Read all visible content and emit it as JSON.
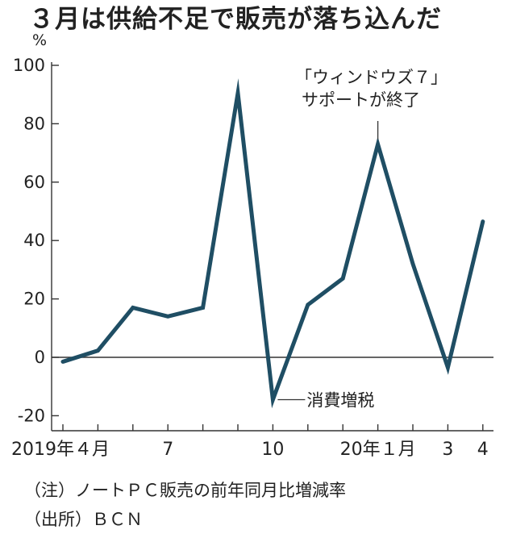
{
  "title": "３月は供給不足で販売が落ち込んだ",
  "notes": {
    "note": "（注）ノートＰＣ販売の前年同月比増減率",
    "source": "（出所）ＢＣＮ"
  },
  "chart_data": {
    "type": "line",
    "ylabel": "%",
    "ylim": [
      -20,
      100
    ],
    "y_ticks": [
      -20,
      0,
      20,
      40,
      60,
      80,
      100
    ],
    "grid": false,
    "x": [
      "2019-04",
      "2019-05",
      "2019-06",
      "2019-07",
      "2019-08",
      "2019-09",
      "2019-10",
      "2019-11",
      "2019-12",
      "2020-01",
      "2020-02",
      "2020-03",
      "2020-04"
    ],
    "x_tick_labels": [
      {
        "index": 0,
        "label": "2019年４月"
      },
      {
        "index": 3,
        "label": "7"
      },
      {
        "index": 6,
        "label": "10"
      },
      {
        "index": 9,
        "label": "20年１月"
      },
      {
        "index": 11,
        "label": "3"
      },
      {
        "index": 12,
        "label": "4"
      }
    ],
    "series": [
      {
        "values": [
          -1.5,
          2.3,
          17.0,
          14.0,
          17.0,
          90.5,
          -14.5,
          18.0,
          27.0,
          73.0,
          32.0,
          -3.5,
          46.5
        ],
        "color": "#1f4e64"
      }
    ],
    "annotations": [
      {
        "index": 6,
        "lines": [
          "消費増税"
        ]
      },
      {
        "index": 9,
        "lines": [
          "「ウィンドウズ７」",
          "サポートが終了"
        ]
      }
    ]
  }
}
